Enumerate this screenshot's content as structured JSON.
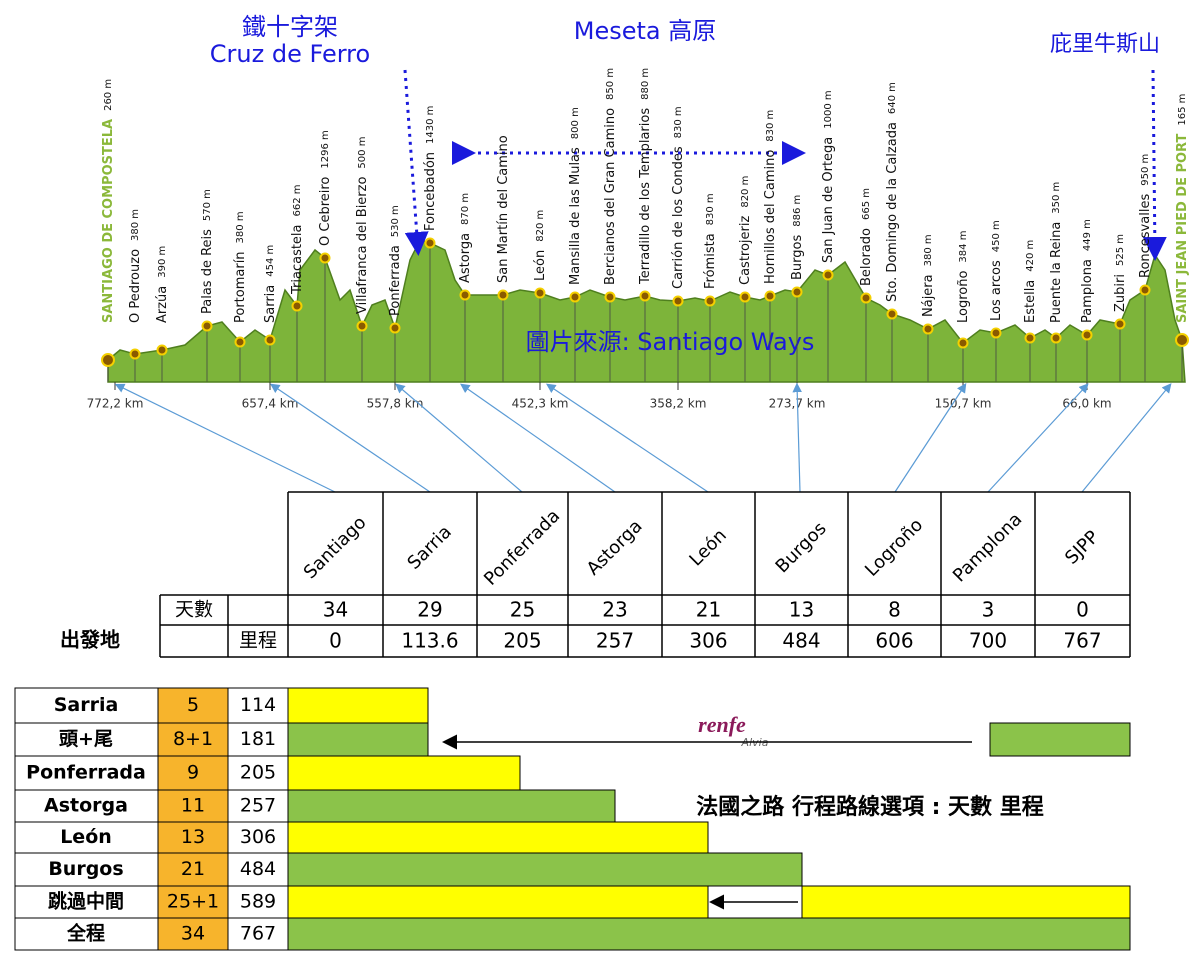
{
  "annotations": {
    "iron_cross_zh": "鐵十字架",
    "iron_cross": "Cruz de Ferro",
    "meseta": "Meseta 高原",
    "pyrenees": "庇里牛斯山",
    "source": "圖片來源: Santiago Ways"
  },
  "profile": {
    "towns": [
      {
        "name": "SANTIAGO DE COMPOSTELA",
        "elevation": "260 m"
      },
      {
        "name": "O Pedrouzo",
        "elevation": "380 m"
      },
      {
        "name": "Arzúa",
        "elevation": "390 m"
      },
      {
        "name": "Palas de Reis",
        "elevation": "570 m"
      },
      {
        "name": "Portomarín",
        "elevation": "380 m"
      },
      {
        "name": "Sarria",
        "elevation": "454 m"
      },
      {
        "name": "Triacastela",
        "elevation": "662 m"
      },
      {
        "name": "O Cebreiro",
        "elevation": "1296 m"
      },
      {
        "name": "Villafranca del Bierzo",
        "elevation": "500 m"
      },
      {
        "name": "Ponferrada",
        "elevation": "530 m"
      },
      {
        "name": "Foncebadón",
        "elevation": "1430 m"
      },
      {
        "name": "Astorga",
        "elevation": "870 m"
      },
      {
        "name": "San Martín del Camino"
      },
      {
        "name": "León",
        "elevation": "820 m"
      },
      {
        "name": "Mansilla de las Mulas",
        "elevation": "800 m"
      },
      {
        "name": "Bercianos del Gran Camino",
        "elevation": "850 m"
      },
      {
        "name": "Terradillo de los Templarios",
        "elevation": "880 m"
      },
      {
        "name": "Carrión de los Condes",
        "elevation": "830 m"
      },
      {
        "name": "Frómista",
        "elevation": "830 m"
      },
      {
        "name": "Castrojeriz",
        "elevation": "820 m"
      },
      {
        "name": "Hornillos del Camino",
        "elevation": "830 m"
      },
      {
        "name": "Burgos",
        "elevation": "886 m"
      },
      {
        "name": "San Juan de Ortega",
        "elevation": "1000 m"
      },
      {
        "name": "Belorado",
        "elevation": "665 m"
      },
      {
        "name": "Sto. Domingo de la Calzada",
        "elevation": "640 m"
      },
      {
        "name": "Nájera",
        "elevation": "380 m"
      },
      {
        "name": "Logroño",
        "elevation": "384 m"
      },
      {
        "name": "Los arcos",
        "elevation": "450 m"
      },
      {
        "name": "Estella",
        "elevation": "420 m"
      },
      {
        "name": "Puente la Reina",
        "elevation": "350 m"
      },
      {
        "name": "Pamplona",
        "elevation": "449 m"
      },
      {
        "name": "Zubiri",
        "elevation": "525 m"
      },
      {
        "name": "Roncesvalles",
        "elevation": "950 m"
      },
      {
        "name": "SAINT JEAN PIED DE PORT",
        "elevation": "165 m"
      }
    ],
    "distances": [
      "772,2 km",
      "657,4 km",
      "557,8 km",
      "452,3 km",
      "358,2 km",
      "273,7 km",
      "150,7 km",
      "66,0 km"
    ]
  },
  "table": {
    "columns": [
      "Santiago",
      "Sarria",
      "Ponferrada",
      "Astorga",
      "León",
      "Burgos",
      "Logroño",
      "Pamplona",
      "SJPP"
    ],
    "start_label": "出發地",
    "days_label": "天數",
    "distance_label": "里程",
    "days": [
      34,
      29,
      25,
      23,
      21,
      13,
      8,
      3,
      0
    ],
    "distance": [
      0,
      113.6,
      205,
      257,
      306,
      484,
      606,
      700,
      767
    ]
  },
  "options": {
    "title": "法國之路 行程路線選項 : 天數 里程",
    "logo": "renfe",
    "logo_sub": "Alvia",
    "rows": [
      {
        "name": "Sarria",
        "days": "5",
        "km": "114"
      },
      {
        "name": "頭+尾",
        "days": "8+1",
        "km": "181"
      },
      {
        "name": "Ponferrada",
        "days": "9",
        "km": "205"
      },
      {
        "name": "Astorga",
        "days": "11",
        "km": "257"
      },
      {
        "name": "León",
        "days": "13",
        "km": "306"
      },
      {
        "name": "Burgos",
        "days": "21",
        "km": "484"
      },
      {
        "name": "跳過中間",
        "days": "25+1",
        "km": "589"
      },
      {
        "name": "全程",
        "days": "34",
        "km": "767"
      }
    ]
  }
}
